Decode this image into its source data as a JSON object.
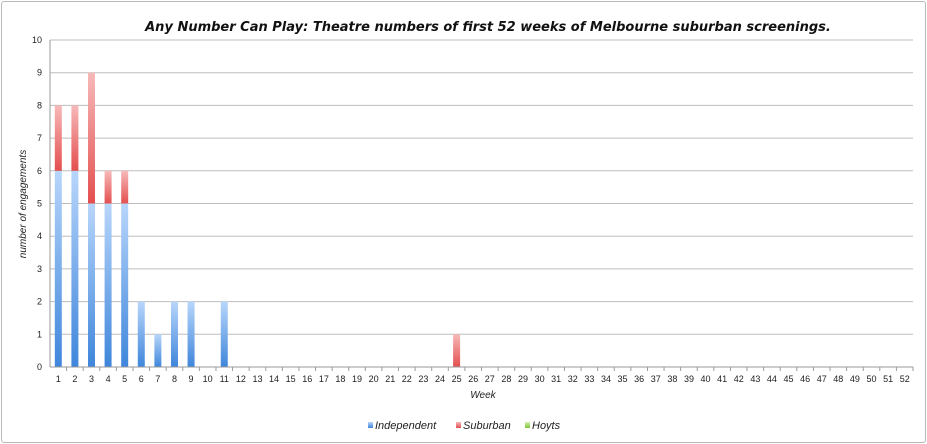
{
  "chart_data": {
    "type": "bar",
    "stacked": true,
    "title": "Any Number Can Play: Theatre numbers of first 52 weeks of Melbourne suburban screenings.",
    "xlabel": "Week",
    "ylabel": "number of engagements",
    "ylim": [
      0,
      10
    ],
    "yticks": [
      "0",
      "1",
      "2",
      "3",
      "4",
      "5",
      "6",
      "7",
      "8",
      "9",
      "10"
    ],
    "grid": true,
    "legend_position": "bottom",
    "categories": [
      "1",
      "2",
      "3",
      "4",
      "5",
      "6",
      "7",
      "8",
      "9",
      "10",
      "11",
      "12",
      "13",
      "14",
      "15",
      "16",
      "17",
      "18",
      "19",
      "20",
      "21",
      "22",
      "23",
      "24",
      "25",
      "26",
      "27",
      "28",
      "29",
      "30",
      "31",
      "32",
      "33",
      "34",
      "35",
      "36",
      "37",
      "38",
      "39",
      "40",
      "41",
      "42",
      "43",
      "44",
      "45",
      "46",
      "47",
      "48",
      "49",
      "50",
      "51",
      "52"
    ],
    "series": [
      {
        "name": "Independent",
        "color": "#4a8fe0",
        "values": [
          6,
          6,
          5,
          5,
          5,
          2,
          1,
          2,
          2,
          0,
          2,
          0,
          0,
          0,
          0,
          0,
          0,
          0,
          0,
          0,
          0,
          0,
          0,
          0,
          0,
          0,
          0,
          0,
          0,
          0,
          0,
          0,
          0,
          0,
          0,
          0,
          0,
          0,
          0,
          0,
          0,
          0,
          0,
          0,
          0,
          0,
          0,
          0,
          0,
          0,
          0,
          0
        ]
      },
      {
        "name": "Suburban",
        "color": "#e85a5a",
        "values": [
          2,
          2,
          4,
          1,
          1,
          0,
          0,
          0,
          0,
          0,
          0,
          0,
          0,
          0,
          0,
          0,
          0,
          0,
          0,
          0,
          0,
          0,
          0,
          0,
          1,
          0,
          0,
          0,
          0,
          0,
          0,
          0,
          0,
          0,
          0,
          0,
          0,
          0,
          0,
          0,
          0,
          0,
          0,
          0,
          0,
          0,
          0,
          0,
          0,
          0,
          0,
          0
        ]
      },
      {
        "name": "Hoyts",
        "color": "#8fd14f",
        "values": [
          0,
          0,
          0,
          0,
          0,
          0,
          0,
          0,
          0,
          0,
          0,
          0,
          0,
          0,
          0,
          0,
          0,
          0,
          0,
          0,
          0,
          0,
          0,
          0,
          0,
          0,
          0,
          0,
          0,
          0,
          0,
          0,
          0,
          0,
          0,
          0,
          0,
          0,
          0,
          0,
          0,
          0,
          0,
          0,
          0,
          0,
          0,
          0,
          0,
          0,
          0,
          0
        ]
      }
    ]
  }
}
